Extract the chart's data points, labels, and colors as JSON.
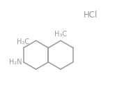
{
  "hcl_label": "HCl",
  "nh2_label": "H₂N",
  "ch3_label_left": "H₃C",
  "ch3_label_right": "H₃C",
  "bg_color": "#ffffff",
  "line_color": "#999999",
  "text_color": "#999999",
  "hcl_color": "#999999",
  "fig_width": 1.78,
  "fig_height": 1.36,
  "dpi": 100
}
